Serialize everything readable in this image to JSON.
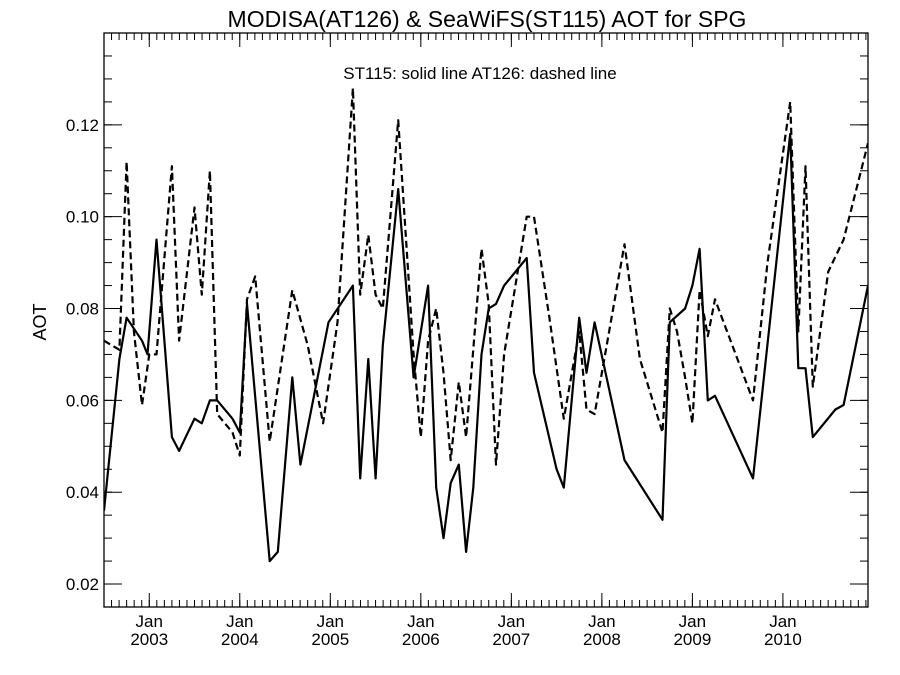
{
  "chart_data": {
    "type": "line",
    "title": "MODISA(AT126) & SeaWiFS(ST115)  AOT for SPG",
    "annotation": "ST115: solid line   AT126: dashed line",
    "ylabel": "AOT",
    "xlabel": "",
    "ylim": [
      0.015,
      0.14
    ],
    "xlim": [
      2002.5,
      2010.94
    ],
    "yticks": [
      0.02,
      0.04,
      0.06,
      0.08,
      0.1,
      0.12
    ],
    "ytick_labels": [
      "0.02",
      "0.04",
      "0.06",
      "0.08",
      "0.10",
      "0.12"
    ],
    "xticks": [
      {
        "x": 2003.0,
        "month": "Jan",
        "year": "2003"
      },
      {
        "x": 2004.0,
        "month": "Jan",
        "year": "2004"
      },
      {
        "x": 2005.0,
        "month": "Jan",
        "year": "2005"
      },
      {
        "x": 2006.0,
        "month": "Jan",
        "year": "2006"
      },
      {
        "x": 2007.0,
        "month": "Jan",
        "year": "2007"
      },
      {
        "x": 2008.0,
        "month": "Jan",
        "year": "2008"
      },
      {
        "x": 2009.0,
        "month": "Jan",
        "year": "2009"
      },
      {
        "x": 2010.0,
        "month": "Jan",
        "year": "2010"
      }
    ],
    "grid": false,
    "series": [
      {
        "style": "solid",
        "points": [
          [
            2002.5,
            0.036
          ],
          [
            2002.67,
            0.069
          ],
          [
            2002.75,
            0.078
          ],
          [
            2002.92,
            0.073
          ],
          [
            2002.98,
            0.07
          ],
          [
            2003.08,
            0.095
          ],
          [
            2003.25,
            0.052
          ],
          [
            2003.33,
            0.049
          ],
          [
            2003.5,
            0.056
          ],
          [
            2003.58,
            0.055
          ],
          [
            2003.67,
            0.06
          ],
          [
            2003.75,
            0.06
          ],
          [
            2003.92,
            0.056
          ],
          [
            2004.0,
            0.053
          ],
          [
            2004.08,
            0.081
          ],
          [
            2004.33,
            0.025
          ],
          [
            2004.42,
            0.027
          ],
          [
            2004.58,
            0.065
          ],
          [
            2004.67,
            0.046
          ],
          [
            2004.98,
            0.077
          ],
          [
            2005.25,
            0.085
          ],
          [
            2005.33,
            0.043
          ],
          [
            2005.42,
            0.069
          ],
          [
            2005.5,
            0.043
          ],
          [
            2005.58,
            0.072
          ],
          [
            2005.75,
            0.106
          ],
          [
            2005.92,
            0.065
          ],
          [
            2006.08,
            0.085
          ],
          [
            2006.17,
            0.041
          ],
          [
            2006.25,
            0.03
          ],
          [
            2006.33,
            0.042
          ],
          [
            2006.42,
            0.046
          ],
          [
            2006.5,
            0.027
          ],
          [
            2006.58,
            0.041
          ],
          [
            2006.67,
            0.07
          ],
          [
            2006.75,
            0.08
          ],
          [
            2006.83,
            0.081
          ],
          [
            2006.92,
            0.085
          ],
          [
            2007.17,
            0.091
          ],
          [
            2007.25,
            0.066
          ],
          [
            2007.5,
            0.045
          ],
          [
            2007.58,
            0.041
          ],
          [
            2007.75,
            0.078
          ],
          [
            2007.83,
            0.066
          ],
          [
            2007.92,
            0.077
          ],
          [
            2008.25,
            0.047
          ],
          [
            2008.67,
            0.034
          ],
          [
            2008.75,
            0.077
          ],
          [
            2008.92,
            0.08
          ],
          [
            2009.0,
            0.085
          ],
          [
            2009.08,
            0.093
          ],
          [
            2009.17,
            0.06
          ],
          [
            2009.25,
            0.061
          ],
          [
            2009.67,
            0.043
          ],
          [
            2010.08,
            0.118
          ],
          [
            2010.17,
            0.067
          ],
          [
            2010.25,
            0.067
          ],
          [
            2010.33,
            0.052
          ],
          [
            2010.58,
            0.058
          ],
          [
            2010.67,
            0.059
          ],
          [
            2010.94,
            0.085
          ]
        ]
      },
      {
        "style": "dashed",
        "points": [
          [
            2002.5,
            0.073
          ],
          [
            2002.67,
            0.071
          ],
          [
            2002.75,
            0.112
          ],
          [
            2002.83,
            0.075
          ],
          [
            2002.92,
            0.059
          ],
          [
            2003.0,
            0.07
          ],
          [
            2003.08,
            0.07
          ],
          [
            2003.25,
            0.111
          ],
          [
            2003.33,
            0.073
          ],
          [
            2003.5,
            0.102
          ],
          [
            2003.58,
            0.083
          ],
          [
            2003.67,
            0.11
          ],
          [
            2003.75,
            0.057
          ],
          [
            2003.92,
            0.053
          ],
          [
            2004.0,
            0.048
          ],
          [
            2004.08,
            0.082
          ],
          [
            2004.17,
            0.087
          ],
          [
            2004.33,
            0.051
          ],
          [
            2004.58,
            0.084
          ],
          [
            2004.75,
            0.072
          ],
          [
            2004.92,
            0.055
          ],
          [
            2005.08,
            0.077
          ],
          [
            2005.25,
            0.128
          ],
          [
            2005.33,
            0.083
          ],
          [
            2005.42,
            0.096
          ],
          [
            2005.5,
            0.083
          ],
          [
            2005.58,
            0.08
          ],
          [
            2005.75,
            0.121
          ],
          [
            2005.92,
            0.07
          ],
          [
            2006.0,
            0.052
          ],
          [
            2006.08,
            0.073
          ],
          [
            2006.17,
            0.08
          ],
          [
            2006.25,
            0.066
          ],
          [
            2006.33,
            0.047
          ],
          [
            2006.42,
            0.064
          ],
          [
            2006.5,
            0.052
          ],
          [
            2006.67,
            0.093
          ],
          [
            2006.75,
            0.081
          ],
          [
            2006.83,
            0.046
          ],
          [
            2006.92,
            0.07
          ],
          [
            2007.17,
            0.1
          ],
          [
            2007.25,
            0.1
          ],
          [
            2007.42,
            0.078
          ],
          [
            2007.58,
            0.056
          ],
          [
            2007.75,
            0.075
          ],
          [
            2007.83,
            0.058
          ],
          [
            2007.92,
            0.057
          ],
          [
            2008.25,
            0.094
          ],
          [
            2008.42,
            0.069
          ],
          [
            2008.67,
            0.053
          ],
          [
            2008.75,
            0.08
          ],
          [
            2008.83,
            0.075
          ],
          [
            2008.92,
            0.065
          ],
          [
            2009.0,
            0.055
          ],
          [
            2009.08,
            0.084
          ],
          [
            2009.17,
            0.074
          ],
          [
            2009.25,
            0.082
          ],
          [
            2009.67,
            0.06
          ],
          [
            2009.83,
            0.09
          ],
          [
            2010.08,
            0.125
          ],
          [
            2010.17,
            0.075
          ],
          [
            2010.25,
            0.111
          ],
          [
            2010.33,
            0.063
          ],
          [
            2010.5,
            0.088
          ],
          [
            2010.67,
            0.095
          ],
          [
            2010.94,
            0.116
          ]
        ]
      }
    ]
  }
}
